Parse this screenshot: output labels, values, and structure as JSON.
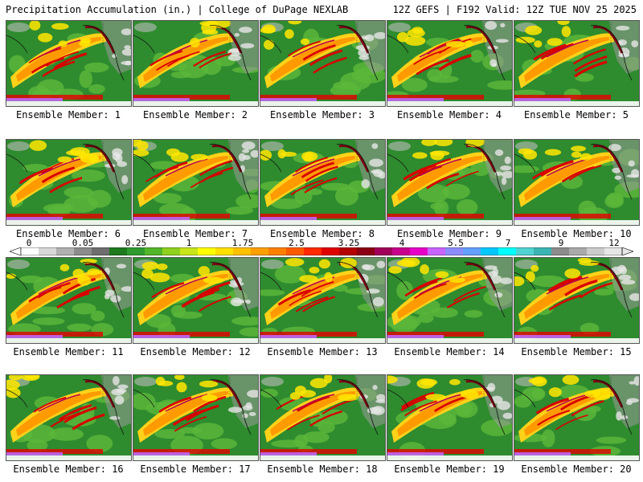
{
  "header": {
    "left_title": "Precipitation Accumulation (in.) | College of DuPage NEXLAB",
    "right_title": "12Z GEFS | F192 Valid: 12Z TUE NOV 25 2025"
  },
  "panels": [
    {
      "label": "Ensemble Member: 1"
    },
    {
      "label": "Ensemble Member: 2"
    },
    {
      "label": "Ensemble Member: 3"
    },
    {
      "label": "Ensemble Member: 4"
    },
    {
      "label": "Ensemble Member: 5"
    },
    {
      "label": "Ensemble Member: 6"
    },
    {
      "label": "Ensemble Member: 7"
    },
    {
      "label": "Ensemble Member: 8"
    },
    {
      "label": "Ensemble Member: 9"
    },
    {
      "label": "Ensemble Member: 10"
    },
    {
      "label": "Ensemble Member: 11"
    },
    {
      "label": "Ensemble Member: 12"
    },
    {
      "label": "Ensemble Member: 13"
    },
    {
      "label": "Ensemble Member: 14"
    },
    {
      "label": "Ensemble Member: 15"
    },
    {
      "label": "Ensemble Member: 16"
    },
    {
      "label": "Ensemble Member: 17"
    },
    {
      "label": "Ensemble Member: 18"
    },
    {
      "label": "Ensemble Member: 19"
    },
    {
      "label": "Ensemble Member: 20"
    }
  ],
  "colorbar": {
    "ticks": [
      "0",
      "0.05",
      "0.25",
      "1",
      "1.75",
      "2.5",
      "3.25",
      "4",
      "5.5",
      "7",
      "9",
      "12"
    ],
    "colors": [
      "#ffffff",
      "#d8d8d8",
      "#b0b0b0",
      "#8c8c8c",
      "#6e6e6e",
      "#1e7a1e",
      "#2f9a2f",
      "#52b52a",
      "#8fd11e",
      "#c8e61a",
      "#ffff00",
      "#ffe000",
      "#ffc000",
      "#ffa000",
      "#ff8000",
      "#ff5a00",
      "#ff2a00",
      "#e00000",
      "#b40000",
      "#8c0014",
      "#a0005a",
      "#c8008c",
      "#e600c8",
      "#c864ff",
      "#8c8cff",
      "#64a0ff",
      "#00c8ff",
      "#00ffff",
      "#50d2d2",
      "#3cb4b4",
      "#8c8c8c",
      "#aaaaaa",
      "#cccccc",
      "#e6e6e6"
    ]
  }
}
